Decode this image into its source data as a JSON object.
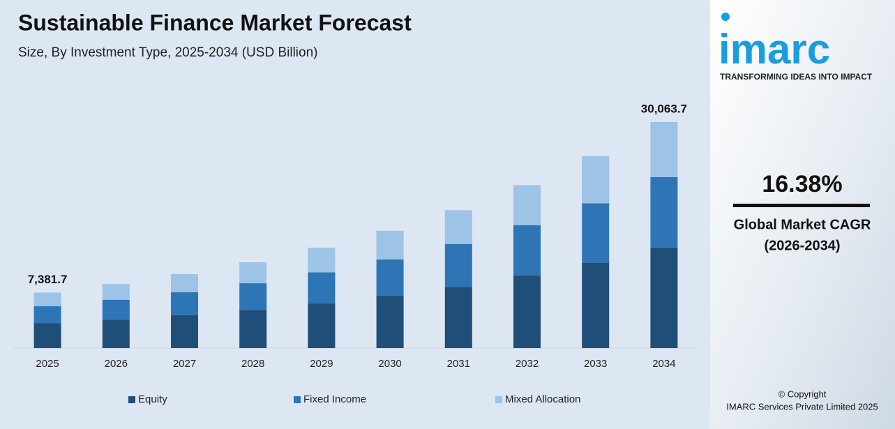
{
  "chart_data": {
    "type": "bar",
    "stacked": true,
    "title": "Sustainable Finance Market Forecast",
    "subtitle": "Size, By Investment Type, 2025-2034 (USD Billion)",
    "categories": [
      "2025",
      "2026",
      "2027",
      "2028",
      "2029",
      "2030",
      "2031",
      "2032",
      "2033",
      "2034"
    ],
    "series": [
      {
        "name": "Equity",
        "color": "#1f4e79",
        "values": [
          3293,
          3790,
          4380,
          5080,
          5930,
          6950,
          8150,
          9640,
          11350,
          13362
        ]
      },
      {
        "name": "Fixed Income",
        "color": "#2e75b6",
        "values": [
          2271,
          2640,
          3050,
          3540,
          4140,
          4840,
          5690,
          6710,
          7910,
          9371
        ]
      },
      {
        "name": "Mixed Allocation",
        "color": "#9dc3e6",
        "values": [
          1817.7,
          2090,
          2400,
          2790,
          3270,
          3820,
          4490,
          5310,
          6250,
          7330.7
        ]
      }
    ],
    "totals": [
      7381.7,
      null,
      null,
      null,
      null,
      null,
      null,
      null,
      null,
      30063.7
    ],
    "total_labels": [
      "7,381.7",
      null,
      null,
      null,
      null,
      null,
      null,
      null,
      null,
      "30,063.7"
    ],
    "ylim": [
      0,
      33300
    ],
    "legend": "bottom"
  },
  "side_panel": {
    "logo": "imarc",
    "tagline": "TRANSFORMING IDEAS INTO IMPACT",
    "cagr": "16.38%",
    "cagr_label": "Global Market CAGR",
    "cagr_period": "(2026-2034)",
    "copyright": "© Copyright",
    "company": "IMARC Services Private Limited 2025"
  }
}
